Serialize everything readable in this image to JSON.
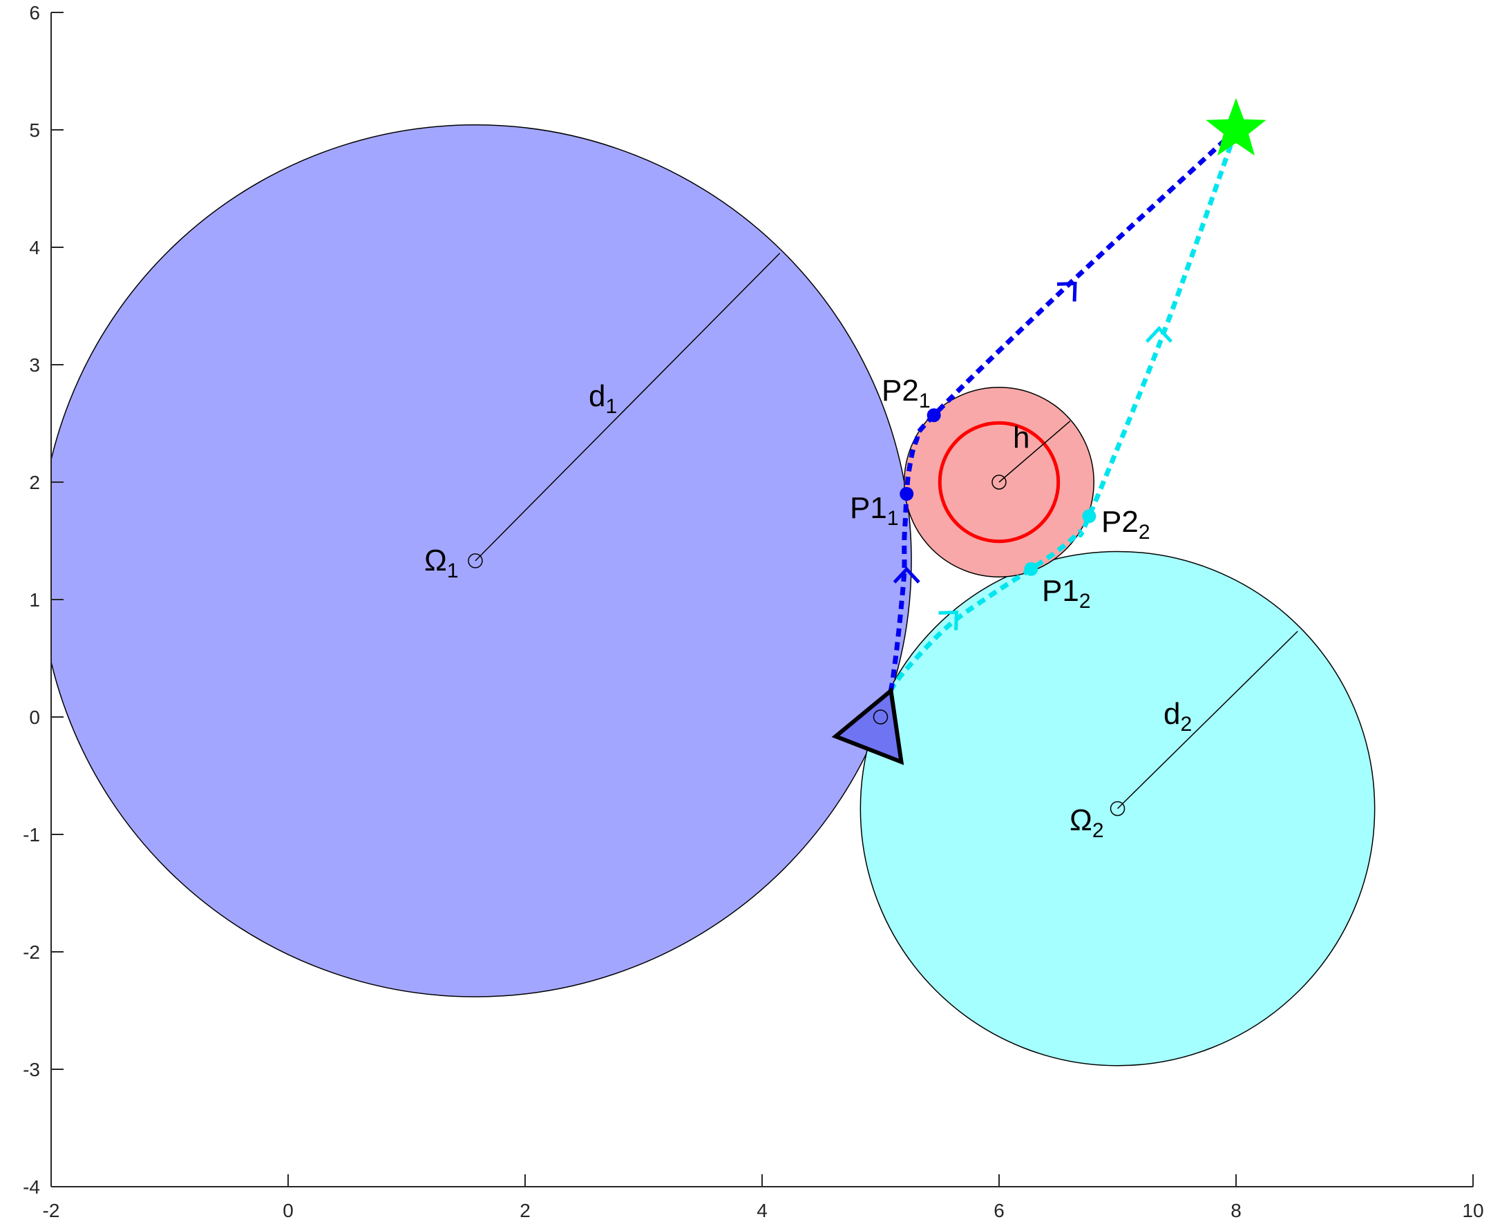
{
  "chart_data": {
    "type": "diagram",
    "xlim": [
      -2,
      10
    ],
    "ylim": [
      -4,
      6
    ],
    "x_ticks": [
      "-2",
      "0",
      "2",
      "4",
      "6",
      "8",
      "10"
    ],
    "y_ticks": [
      "-4",
      "-3",
      "-2",
      "-1",
      "0",
      "1",
      "2",
      "3",
      "4",
      "5",
      "6"
    ],
    "grid": false,
    "colors": {
      "obstacle_1": "#a3a6ff",
      "obstacle_2": "#a6ffff",
      "hazard": "#f8a8a8",
      "hazard_ring": "#ff0000",
      "path_1": "#0000ee",
      "path_2": "#00e5ee",
      "goal": "#00ff00",
      "robot": "#6f74f2"
    },
    "obstacles": [
      {
        "id": "obstacle_1",
        "center": [
          1.58,
          1.33
        ],
        "radius": 3.68,
        "label_main": "Ω",
        "label_sub": "1",
        "radius_label_main": "d",
        "radius_label_sub": "1",
        "radius_end": [
          4.15,
          3.95
        ]
      },
      {
        "id": "obstacle_2",
        "center": [
          7.0,
          -0.78
        ],
        "radius": 2.17,
        "label_main": "Ω",
        "label_sub": "2",
        "radius_label_main": "d",
        "radius_label_sub": "2",
        "radius_end": [
          8.52,
          0.73
        ]
      }
    ],
    "hazard": {
      "center": [
        6.0,
        2.0
      ],
      "radius": 0.8,
      "inner_radius": 0.5,
      "radius_label": "h",
      "radius_end": [
        6.6,
        2.52
      ]
    },
    "goal": {
      "position": [
        8.0,
        5.0
      ],
      "marker": "star"
    },
    "robot": {
      "position": [
        5.0,
        0.0
      ],
      "marker": "triangle"
    },
    "paths": [
      {
        "name": "path_1",
        "points": [
          [
            5.0,
            0.0
          ],
          [
            5.08,
            0.2
          ],
          [
            5.12,
            0.45
          ],
          [
            5.15,
            0.7
          ],
          [
            5.18,
            1.0
          ],
          [
            5.2,
            1.25
          ],
          [
            5.2,
            1.5
          ],
          [
            5.21,
            1.7
          ],
          [
            5.22,
            1.9
          ],
          [
            5.24,
            2.1
          ],
          [
            5.3,
            2.35
          ],
          [
            5.45,
            2.57
          ],
          [
            6.5,
            3.6
          ],
          [
            8.0,
            5.0
          ]
        ],
        "control_points": [
          {
            "main": "P1",
            "sub": "1",
            "at": [
              5.22,
              1.9
            ]
          },
          {
            "main": "P2",
            "sub": "1",
            "at": [
              5.45,
              2.57
            ]
          }
        ],
        "arrows": [
          {
            "at": [
              5.22,
              1.2
            ],
            "direction": "up"
          },
          {
            "at": [
              6.6,
              3.65
            ],
            "direction": "upper-right"
          }
        ]
      },
      {
        "name": "path_2",
        "points": [
          [
            5.0,
            0.0
          ],
          [
            5.1,
            0.25
          ],
          [
            5.3,
            0.5
          ],
          [
            5.6,
            0.8
          ],
          [
            5.95,
            1.05
          ],
          [
            6.27,
            1.26
          ],
          [
            6.5,
            1.42
          ],
          [
            6.67,
            1.57
          ],
          [
            6.76,
            1.71
          ],
          [
            7.4,
            3.3
          ],
          [
            8.0,
            5.0
          ]
        ],
        "control_points": [
          {
            "main": "P1",
            "sub": "2",
            "at": [
              6.27,
              1.26
            ]
          },
          {
            "main": "P2",
            "sub": "2",
            "at": [
              6.76,
              1.71
            ]
          }
        ],
        "arrows": [
          {
            "at": [
              5.6,
              0.85
            ],
            "direction": "upper-right"
          },
          {
            "at": [
              7.35,
              3.25
            ],
            "direction": "up"
          }
        ]
      }
    ]
  }
}
